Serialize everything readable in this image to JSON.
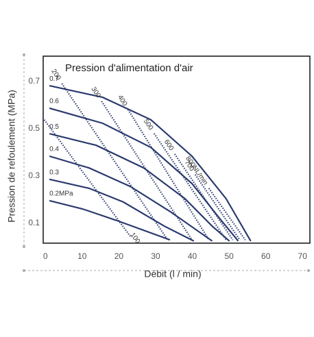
{
  "chart_data": {
    "type": "line",
    "title": "Pression d'alimentation d'air",
    "x_label": "Débit (l / min)",
    "y_label": "Pression de refoulement (MPa)",
    "xlim": [
      -0.6,
      72
    ],
    "ylim": [
      0.016,
      0.807
    ],
    "xticks": [
      0,
      10,
      20,
      30,
      40,
      50,
      60,
      70
    ],
    "yticks": [
      0.1,
      0.3,
      0.5,
      0.7
    ],
    "grid": false,
    "series": [
      {
        "name": "0.7",
        "color": "#2b3a6e",
        "dashed": false,
        "x": [
          1.1,
          15.6,
          28.7,
          39.9,
          49.2,
          55.9
        ],
        "values": [
          0.682,
          0.633,
          0.538,
          0.384,
          0.204,
          0.025
        ]
      },
      {
        "name": "0.6",
        "color": "#2b3a6e",
        "dashed": false,
        "x": [
          1.1,
          15.6,
          28.7,
          39.9,
          47.3,
          52.5
        ],
        "values": [
          0.587,
          0.523,
          0.421,
          0.268,
          0.123,
          0.025
        ]
      },
      {
        "name": "0.5",
        "color": "#2b3a6e",
        "dashed": false,
        "x": [
          1.1,
          13.8,
          26.8,
          38,
          45.4,
          50.1
        ],
        "values": [
          0.479,
          0.43,
          0.334,
          0.204,
          0.088,
          0.025
        ]
      },
      {
        "name": "0.4",
        "color": "#2b3a6e",
        "dashed": false,
        "x": [
          1.1,
          11.9,
          23.1,
          34.3,
          45.4
        ],
        "values": [
          0.384,
          0.334,
          0.256,
          0.146,
          0.025
        ]
      },
      {
        "name": "0.3",
        "color": "#2b3a6e",
        "dashed": false,
        "x": [
          1.1,
          11.9,
          21.2,
          32.4,
          40.4
        ],
        "values": [
          0.286,
          0.248,
          0.19,
          0.088,
          0.025
        ]
      },
      {
        "name": "0.2MPa",
        "color": "#2b3a6e",
        "dashed": false,
        "x": [
          1.1,
          10.1,
          19.4,
          33.9
        ],
        "values": [
          0.196,
          0.161,
          0.112,
          0.03
        ]
      },
      {
        "name": "100",
        "color": "#2b3a6e",
        "dashed": true,
        "label_position": "end",
        "x": [
          -0.7,
          23.1
        ],
        "values": [
          0.546,
          0.045
        ]
      },
      {
        "name": "200",
        "color": "#2b3a6e",
        "dashed": true,
        "label_position": "start",
        "x": [
          4.5,
          33.3
        ],
        "values": [
          0.691,
          0.03
        ]
      },
      {
        "name": "300",
        "color": "#2b3a6e",
        "dashed": true,
        "label_position": "start",
        "x": [
          15.3,
          39.9
        ],
        "values": [
          0.616,
          0.03
        ]
      },
      {
        "name": "400",
        "color": "#2b3a6e",
        "dashed": true,
        "label_position": "start",
        "x": [
          22.5,
          44.5
        ],
        "values": [
          0.581,
          0.03
        ]
      },
      {
        "name": "500",
        "color": "#2b3a6e",
        "dashed": true,
        "label_position": "start",
        "x": [
          29.6,
          49.2
        ],
        "values": [
          0.48,
          0.03
        ]
      },
      {
        "name": "600",
        "color": "#2b3a6e",
        "dashed": true,
        "label_position": "start",
        "x": [
          35.2,
          51
        ],
        "values": [
          0.393,
          0.03
        ]
      },
      {
        "name": "700",
        "color": "#2b3a6e",
        "dashed": true,
        "label_position": "start",
        "x": [
          40.8,
          52.9
        ],
        "values": [
          0.306,
          0.03
        ]
      },
      {
        "name": "800NL/min",
        "color": "#2b3a6e",
        "dashed": true,
        "label_position": "start",
        "x": [
          44.5,
          54.4
        ],
        "values": [
          0.248,
          0.03
        ]
      }
    ]
  }
}
